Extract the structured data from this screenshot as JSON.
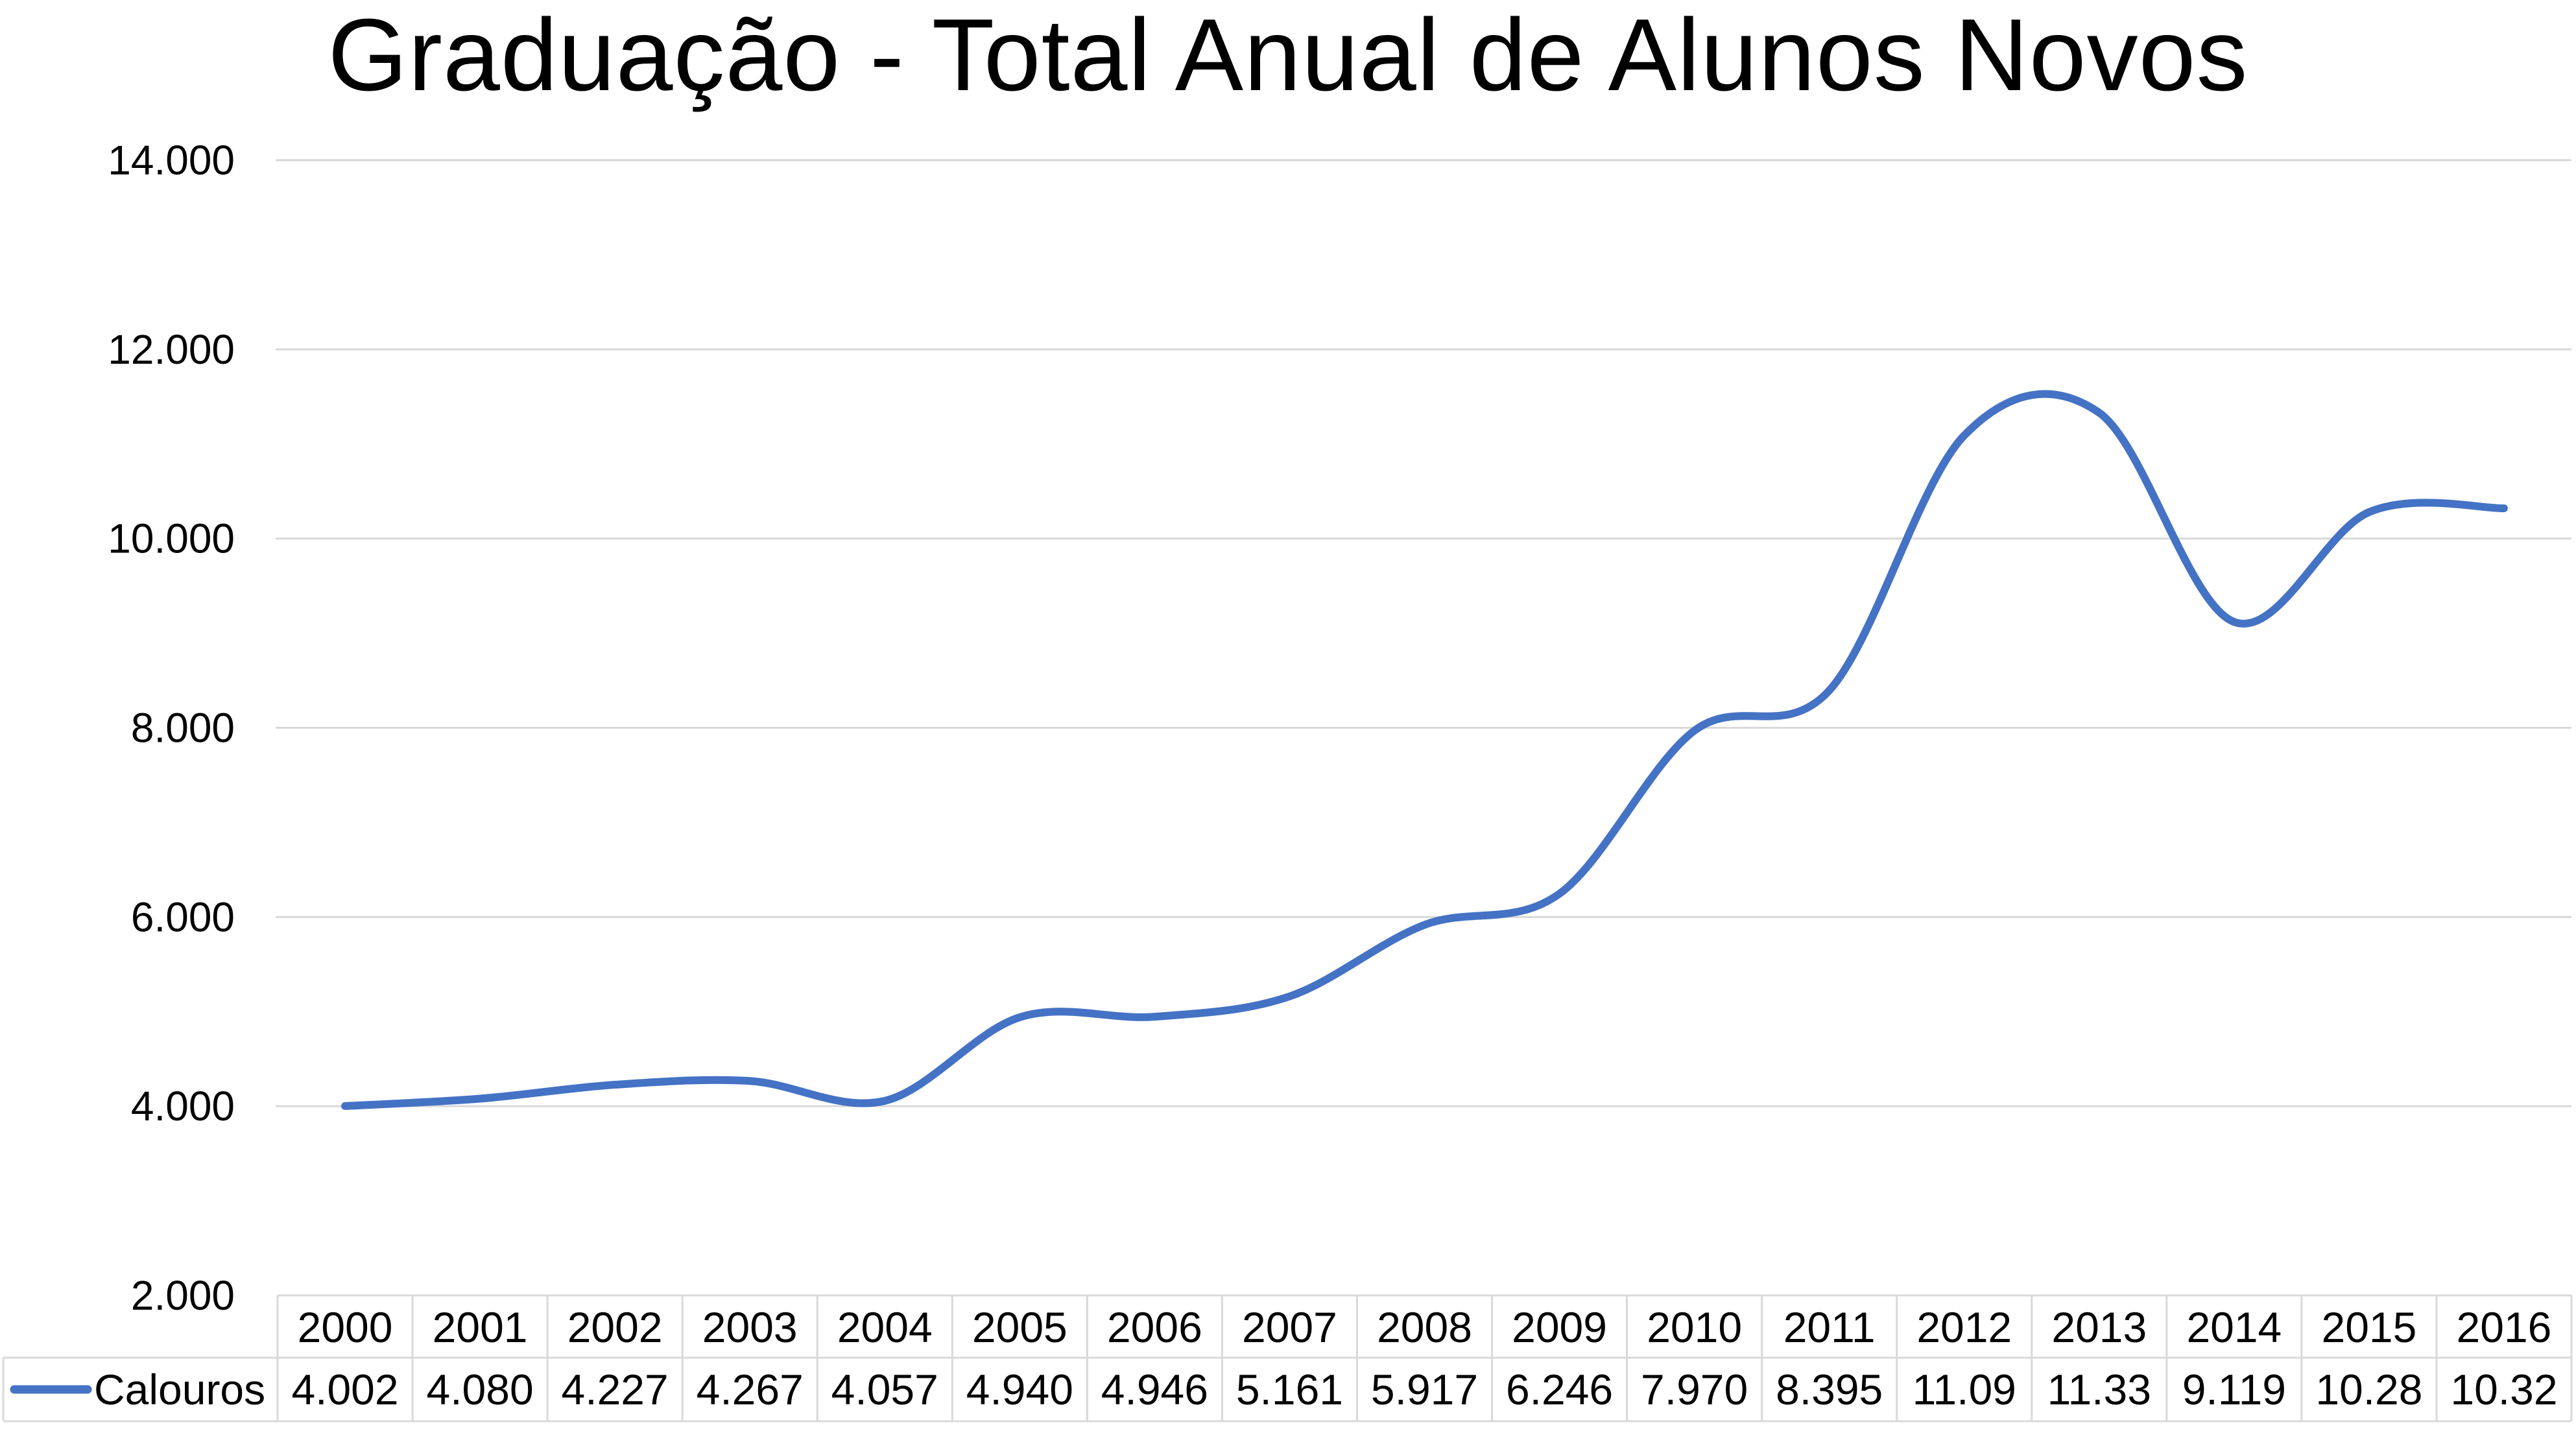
{
  "chart_data": {
    "type": "line",
    "title": "Graduação - Total Anual de Alunos Novos",
    "xlabel": "",
    "ylabel": "",
    "categories": [
      "2000",
      "2001",
      "2002",
      "2003",
      "2004",
      "2005",
      "2006",
      "2007",
      "2008",
      "2009",
      "2010",
      "2011",
      "2012",
      "2013",
      "2014",
      "2015",
      "2016"
    ],
    "series": [
      {
        "name": "Calouros",
        "color": "#4472C4",
        "values": [
          4002,
          4080,
          4227,
          4267,
          4057,
          4940,
          4946,
          5161,
          5917,
          6246,
          7970,
          8395,
          11090,
          11330,
          9119,
          10280,
          10320
        ],
        "table_labels": [
          "4.002",
          "4.080",
          "4.227",
          "4.267",
          "4.057",
          "4.940",
          "4.946",
          "5.161",
          "5.917",
          "6.246",
          "7.970",
          "8.395",
          "11.09",
          "11.33",
          "9.119",
          "10.28",
          "10.32"
        ]
      }
    ],
    "ylim": [
      2000,
      14000
    ],
    "yticks": [
      2000,
      4000,
      6000,
      8000,
      10000,
      12000,
      14000
    ],
    "ytick_labels": [
      "2.000",
      "4.000",
      "6.000",
      "8.000",
      "10.000",
      "12.000",
      "14.000"
    ],
    "grid": true,
    "legend": "data-table",
    "smooth": true
  }
}
